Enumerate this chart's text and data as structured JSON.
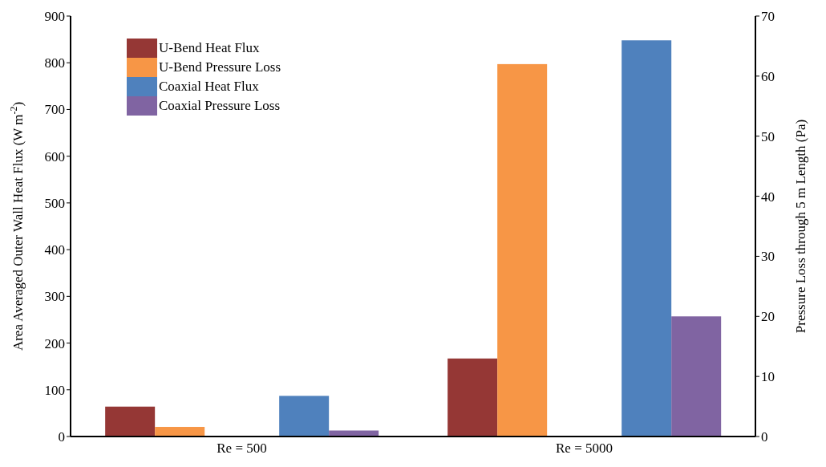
{
  "chart_data": {
    "type": "bar",
    "categories": [
      "Re = 500",
      "Re = 5000"
    ],
    "ylabel": "Area Averaged Outer Wall Heat Flux (W m$^{-2}$)",
    "y2label": "Pressure Loss through 5 m Length (Pa)",
    "ylim": [
      0,
      900
    ],
    "yticks": [
      0,
      100,
      200,
      300,
      400,
      500,
      600,
      700,
      800,
      900
    ],
    "y2lim": [
      0,
      70
    ],
    "y2ticks": [
      0,
      10,
      20,
      30,
      40,
      50,
      60,
      70
    ],
    "series": [
      {
        "name": "U-Bend Heat Flux",
        "color": "#953735",
        "values": [
          64,
          167
        ]
      },
      {
        "name": "U-Bend Pressure Loss",
        "color": "#f79646",
        "values": [
          1.6,
          62
        ],
        "axis": "y2"
      },
      {
        "name": "Coaxial Heat Flux",
        "color": "#4f81bd",
        "values": [
          87,
          848
        ]
      },
      {
        "name": "Coaxial Pressure Loss",
        "color": "#8064a2",
        "values": [
          1,
          20
        ],
        "axis": "y2"
      }
    ],
    "legend": "top left",
    "grid": false
  }
}
